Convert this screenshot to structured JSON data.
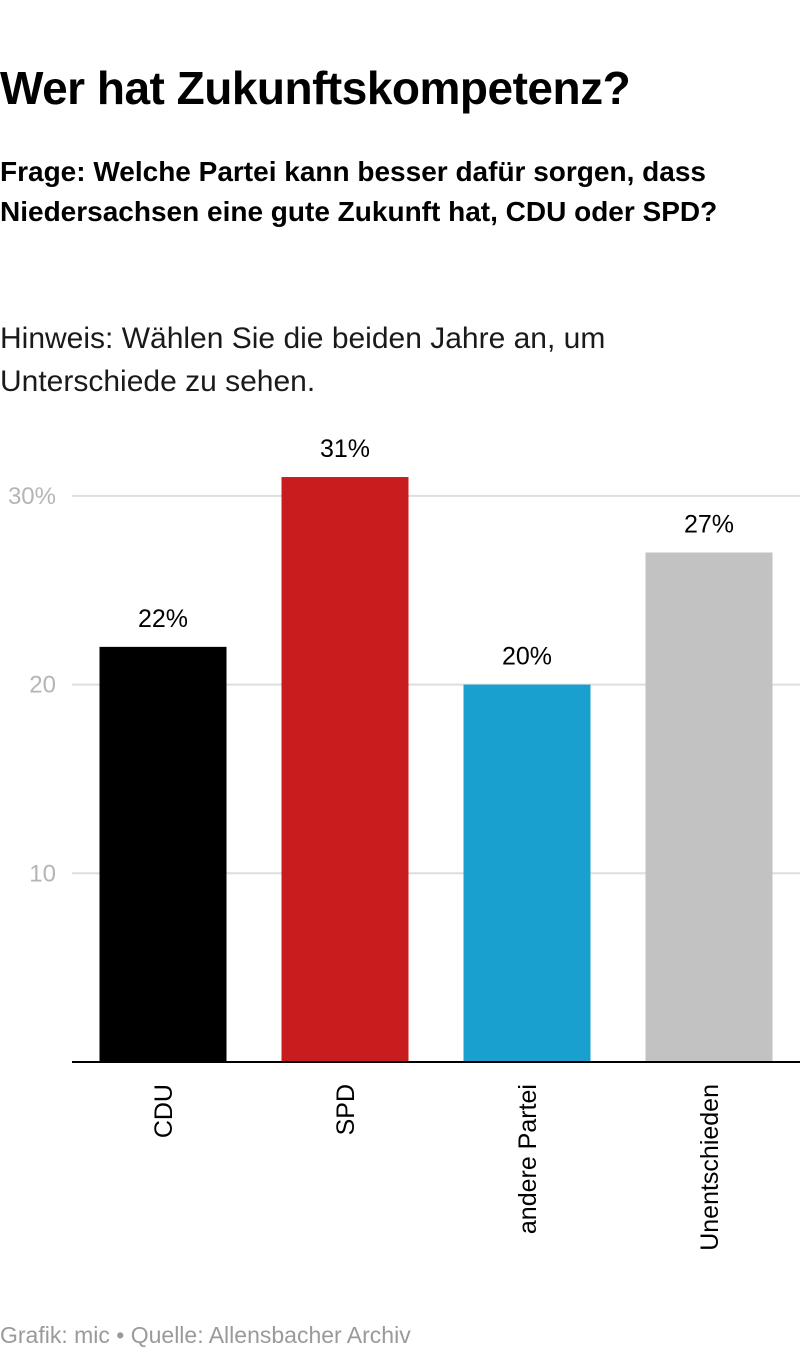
{
  "header": {
    "title": "Wer hat Zukunftskompetenz?",
    "subtitle": "Frage: Welche Partei kann besser dafür sorgen, dass Niedersachsen eine gute Zukunft hat, CDU oder SPD?",
    "hint": "Hinweis: Wählen Sie die beiden Jahre an, um Unterschiede zu sehen."
  },
  "chart_data": {
    "type": "bar",
    "categories": [
      "CDU",
      "SPD",
      "andere Partei",
      "Unentschieden"
    ],
    "values": [
      22,
      31,
      20,
      27
    ],
    "value_labels": [
      "22%",
      "31%",
      "20%",
      "27%"
    ],
    "colors": [
      "#000000",
      "#c81d1f",
      "#1aa0cf",
      "#c2c2c2"
    ],
    "yticks": [
      10,
      20,
      30
    ],
    "ytick_labels": [
      "10",
      "20",
      "30%"
    ],
    "ylim": [
      0,
      30
    ],
    "grid": true,
    "title": "Wer hat Zukunftskompetenz?",
    "xlabel": "",
    "ylabel": ""
  },
  "footer": {
    "credit": "Grafik: mic • Quelle: Allensbacher Archiv"
  }
}
